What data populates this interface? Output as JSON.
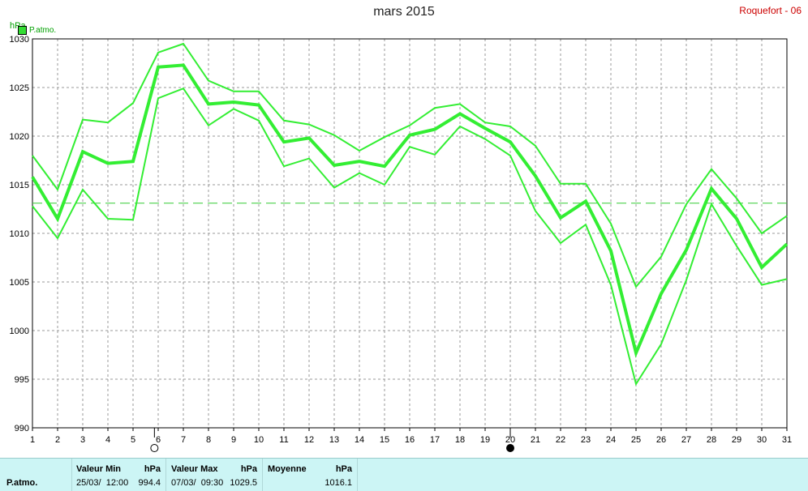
{
  "header": {
    "title": "mars 2015",
    "station": "Roquefort - 06",
    "unit": "hPa",
    "legend_label": "P.atmo."
  },
  "chart_data": {
    "type": "line",
    "title": "mars 2015",
    "ylabel": "hPa",
    "xlim": [
      1,
      31
    ],
    "ylim": [
      990,
      1030
    ],
    "y_ticks": [
      "990",
      "995",
      "1000",
      "1005",
      "1010",
      "1015",
      "1020",
      "1025",
      "1030"
    ],
    "x_ticks": [
      "1",
      "2",
      "3",
      "4",
      "5",
      "6",
      "7",
      "8",
      "9",
      "10",
      "11",
      "12",
      "13",
      "14",
      "15",
      "16",
      "17",
      "18",
      "19",
      "20",
      "21",
      "22",
      "23",
      "24",
      "25",
      "26",
      "27",
      "28",
      "29",
      "30",
      "31"
    ],
    "grid": true,
    "x": [
      1,
      2,
      3,
      4,
      5,
      6,
      7,
      8,
      9,
      10,
      11,
      12,
      13,
      14,
      15,
      16,
      17,
      18,
      19,
      20,
      21,
      22,
      23,
      24,
      25,
      26,
      27,
      28,
      29,
      30,
      31
    ],
    "series": [
      {
        "values": [
          1018,
          1014.5,
          1021.7,
          1021.4,
          1023.4,
          1028.6,
          1029.5,
          1025.7,
          1024.6,
          1024.6,
          1021.6,
          1021.2,
          1020.1,
          1018.5,
          1019.9,
          1021.1,
          1022.9,
          1023.3,
          1021.4,
          1021.0,
          1019.0,
          1015.1,
          1015.1,
          1011.0,
          1004.5,
          1007.6,
          1013.0,
          1016.6,
          1013.6,
          1010.0,
          1011.8
        ]
      },
      {
        "values": [
          1015.8,
          1011.5,
          1018.4,
          1017.2,
          1017.4,
          1027.1,
          1027.3,
          1023.3,
          1023.5,
          1023.2,
          1019.4,
          1019.8,
          1017.0,
          1017.4,
          1016.9,
          1020.1,
          1020.7,
          1022.3,
          1020.8,
          1019.4,
          1015.9,
          1011.6,
          1013.3,
          1008.2,
          997.7,
          1003.8,
          1008.3,
          1014.6,
          1011.5,
          1006.5,
          1008.9
        ]
      },
      {
        "values": [
          1012.8,
          1009.5,
          1014.5,
          1011.5,
          1011.4,
          1023.9,
          1024.9,
          1021.1,
          1022.8,
          1021.6,
          1016.9,
          1017.7,
          1014.7,
          1016.2,
          1015.0,
          1018.9,
          1018.1,
          1021.0,
          1019.7,
          1018.0,
          1012.3,
          1009.0,
          1010.9,
          1004.7,
          994.5,
          998.6,
          1005.2,
          1013.0,
          1008.7,
          1004.7,
          1005.3
        ]
      }
    ],
    "mean_line": 1013.1,
    "markers": [
      {
        "x": 5.85,
        "type": "full-moon"
      },
      {
        "x": 20.0,
        "type": "new-moon"
      }
    ],
    "colors": {
      "line": "#33ee33",
      "mean": "#33cc33",
      "grid": "#999999"
    }
  },
  "summary": {
    "row_label": "P.atmo.",
    "min": {
      "label": "Valeur Min",
      "unit": "hPa",
      "date": "25/03/  12:00",
      "value": "994.4"
    },
    "max": {
      "label": "Valeur Max",
      "unit": "hPa",
      "date": "07/03/  09:30",
      "value": "1029.5"
    },
    "mean": {
      "label": "Moyenne",
      "unit": "hPa",
      "value": "1016.1"
    }
  }
}
